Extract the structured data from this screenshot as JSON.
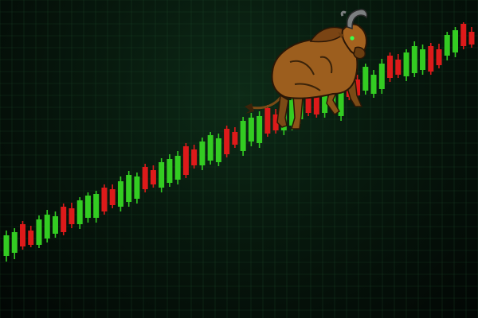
{
  "colors": {
    "up": "#33cc22",
    "down": "#dd1a1a",
    "grid": "#1d4a2a",
    "background_center": "#0d2a17",
    "background_edge": "#020604"
  },
  "illustration": "bull-icon",
  "chart_data": {
    "type": "candlestick",
    "title": "",
    "xlabel": "",
    "ylabel": "",
    "grid": true,
    "legend": "none",
    "axes_visible": false,
    "ylim": [
      0,
      400
    ],
    "candles": [
      {
        "dir": "up",
        "open": 78,
        "close": 104,
        "high": 110,
        "low": 71
      },
      {
        "dir": "up",
        "open": 82,
        "close": 108,
        "high": 113,
        "low": 74
      },
      {
        "dir": "down",
        "open": 118,
        "close": 90,
        "high": 122,
        "low": 86
      },
      {
        "dir": "down",
        "open": 110,
        "close": 92,
        "high": 116,
        "low": 89
      },
      {
        "dir": "up",
        "open": 92,
        "close": 124,
        "high": 129,
        "low": 88
      },
      {
        "dir": "up",
        "open": 100,
        "close": 130,
        "high": 136,
        "low": 95
      },
      {
        "dir": "up",
        "open": 106,
        "close": 128,
        "high": 134,
        "low": 101
      },
      {
        "dir": "down",
        "open": 140,
        "close": 108,
        "high": 144,
        "low": 104
      },
      {
        "dir": "down",
        "open": 138,
        "close": 118,
        "high": 145,
        "low": 113
      },
      {
        "dir": "up",
        "open": 118,
        "close": 148,
        "high": 152,
        "low": 112
      },
      {
        "dir": "up",
        "open": 126,
        "close": 154,
        "high": 158,
        "low": 120
      },
      {
        "dir": "up",
        "open": 126,
        "close": 156,
        "high": 160,
        "low": 120
      },
      {
        "dir": "down",
        "open": 164,
        "close": 134,
        "high": 168,
        "low": 130
      },
      {
        "dir": "down",
        "open": 162,
        "close": 142,
        "high": 168,
        "low": 138
      },
      {
        "dir": "up",
        "open": 140,
        "close": 172,
        "high": 178,
        "low": 134
      },
      {
        "dir": "up",
        "open": 146,
        "close": 180,
        "high": 185,
        "low": 140
      },
      {
        "dir": "up",
        "open": 150,
        "close": 178,
        "high": 183,
        "low": 144
      },
      {
        "dir": "down",
        "open": 190,
        "close": 162,
        "high": 194,
        "low": 158
      },
      {
        "dir": "down",
        "open": 186,
        "close": 168,
        "high": 192,
        "low": 164
      },
      {
        "dir": "up",
        "open": 164,
        "close": 196,
        "high": 201,
        "low": 158
      },
      {
        "dir": "up",
        "open": 170,
        "close": 200,
        "high": 206,
        "low": 165
      },
      {
        "dir": "up",
        "open": 174,
        "close": 204,
        "high": 210,
        "low": 168
      },
      {
        "dir": "down",
        "open": 216,
        "close": 180,
        "high": 220,
        "low": 176
      },
      {
        "dir": "down",
        "open": 212,
        "close": 192,
        "high": 218,
        "low": 188
      },
      {
        "dir": "up",
        "open": 192,
        "close": 222,
        "high": 227,
        "low": 186
      },
      {
        "dir": "up",
        "open": 198,
        "close": 230,
        "high": 234,
        "low": 193
      },
      {
        "dir": "up",
        "open": 196,
        "close": 226,
        "high": 232,
        "low": 191
      },
      {
        "dir": "down",
        "open": 238,
        "close": 206,
        "high": 242,
        "low": 202
      },
      {
        "dir": "down",
        "open": 234,
        "close": 218,
        "high": 240,
        "low": 214
      },
      {
        "dir": "up",
        "open": 210,
        "close": 248,
        "high": 253,
        "low": 204
      },
      {
        "dir": "up",
        "open": 222,
        "close": 252,
        "high": 258,
        "low": 216
      },
      {
        "dir": "up",
        "open": 220,
        "close": 254,
        "high": 260,
        "low": 214
      },
      {
        "dir": "down",
        "open": 264,
        "close": 232,
        "high": 268,
        "low": 228
      },
      {
        "dir": "down",
        "open": 256,
        "close": 236,
        "high": 263,
        "low": 232
      },
      {
        "dir": "up",
        "open": 236,
        "close": 270,
        "high": 275,
        "low": 230
      },
      {
        "dir": "up",
        "open": 242,
        "close": 274,
        "high": 279,
        "low": 236
      },
      {
        "dir": "up",
        "open": 250,
        "close": 280,
        "high": 285,
        "low": 244
      },
      {
        "dir": "down",
        "open": 292,
        "close": 258,
        "high": 296,
        "low": 254
      },
      {
        "dir": "down",
        "open": 280,
        "close": 256,
        "high": 286,
        "low": 252
      },
      {
        "dir": "up",
        "open": 258,
        "close": 290,
        "high": 295,
        "low": 252
      },
      {
        "dir": "up",
        "open": 268,
        "close": 296,
        "high": 301,
        "low": 262
      },
      {
        "dir": "up",
        "open": 254,
        "close": 294,
        "high": 300,
        "low": 248
      },
      {
        "dir": "down",
        "open": 304,
        "close": 278,
        "high": 308,
        "low": 274
      },
      {
        "dir": "down",
        "open": 300,
        "close": 280,
        "high": 306,
        "low": 276
      },
      {
        "dir": "up",
        "open": 286,
        "close": 316,
        "high": 320,
        "low": 281
      },
      {
        "dir": "up",
        "open": 282,
        "close": 306,
        "high": 312,
        "low": 277
      },
      {
        "dir": "up",
        "open": 288,
        "close": 320,
        "high": 326,
        "low": 282
      },
      {
        "dir": "down",
        "open": 330,
        "close": 302,
        "high": 334,
        "low": 297
      },
      {
        "dir": "down",
        "open": 325,
        "close": 306,
        "high": 332,
        "low": 302
      },
      {
        "dir": "up",
        "open": 304,
        "close": 334,
        "high": 338,
        "low": 298
      },
      {
        "dir": "up",
        "open": 308,
        "close": 342,
        "high": 348,
        "low": 303
      },
      {
        "dir": "up",
        "open": 312,
        "close": 338,
        "high": 344,
        "low": 306
      },
      {
        "dir": "down",
        "open": 342,
        "close": 310,
        "high": 346,
        "low": 306
      },
      {
        "dir": "down",
        "open": 338,
        "close": 318,
        "high": 345,
        "low": 314
      },
      {
        "dir": "up",
        "open": 330,
        "close": 356,
        "high": 360,
        "low": 324
      },
      {
        "dir": "up",
        "open": 334,
        "close": 362,
        "high": 366,
        "low": 328
      },
      {
        "dir": "down",
        "open": 370,
        "close": 342,
        "high": 372,
        "low": 338
      },
      {
        "dir": "down",
        "open": 360,
        "close": 344,
        "high": 366,
        "low": 340
      }
    ]
  }
}
